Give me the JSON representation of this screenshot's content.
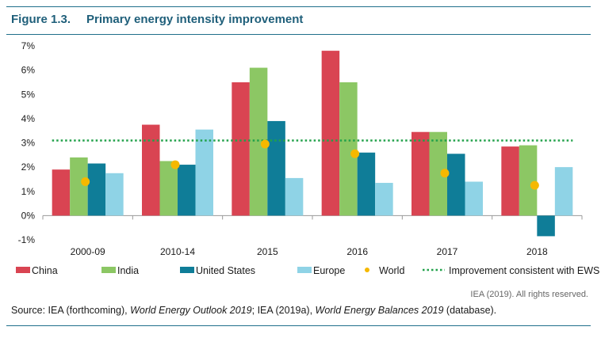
{
  "figure": {
    "number": "Figure 1.3.",
    "title": "Primary energy intensity improvement"
  },
  "colors": {
    "china": "#d94452",
    "india": "#8cc764",
    "united_states": "#0f7d98",
    "europe": "#8fd3e6",
    "world": "#f5b800",
    "ews_line": "#21a14a",
    "rule": "#1f6f8b"
  },
  "chart_data": {
    "type": "bar",
    "categories": [
      "2000-09",
      "2010-14",
      "2015",
      "2016",
      "2017",
      "2018"
    ],
    "series": [
      {
        "name": "China",
        "color_key": "china",
        "values": [
          1.9,
          3.75,
          5.5,
          6.8,
          3.45,
          2.85
        ]
      },
      {
        "name": "India",
        "color_key": "india",
        "values": [
          2.4,
          2.25,
          6.1,
          5.5,
          3.45,
          2.9
        ]
      },
      {
        "name": "United States",
        "color_key": "united_states",
        "values": [
          2.15,
          2.1,
          3.9,
          2.6,
          2.55,
          -0.85
        ]
      },
      {
        "name": "Europe",
        "color_key": "europe",
        "values": [
          1.75,
          3.55,
          1.55,
          1.35,
          1.4,
          2.0
        ]
      }
    ],
    "points": {
      "name": "World",
      "type": "scatter",
      "values": [
        1.4,
        2.1,
        2.95,
        2.55,
        1.75,
        1.25
      ]
    },
    "reference_line": {
      "name": "Improvement consistent with EWS",
      "value": 3.1
    },
    "ylim": [
      -1,
      7
    ],
    "yticks": [
      -1,
      0,
      1,
      2,
      3,
      4,
      5,
      6,
      7
    ],
    "ytick_labels": [
      "-1%",
      "0%",
      "1%",
      "2%",
      "3%",
      "4%",
      "5%",
      "6%",
      "7%"
    ],
    "legend": [
      "China",
      "India",
      "United States",
      "Europe",
      "World",
      "Improvement consistent with EWS"
    ],
    "legend_position": "bottom",
    "grid": false
  },
  "credit": "IEA (2019). All rights reserved.",
  "source": {
    "prefix": "Source: IEA (forthcoming), ",
    "weo": "World Energy Outlook 2019",
    "mid": "; IEA (2019a), ",
    "web": "World Energy Balances 2019",
    "suffix": " (database)."
  }
}
